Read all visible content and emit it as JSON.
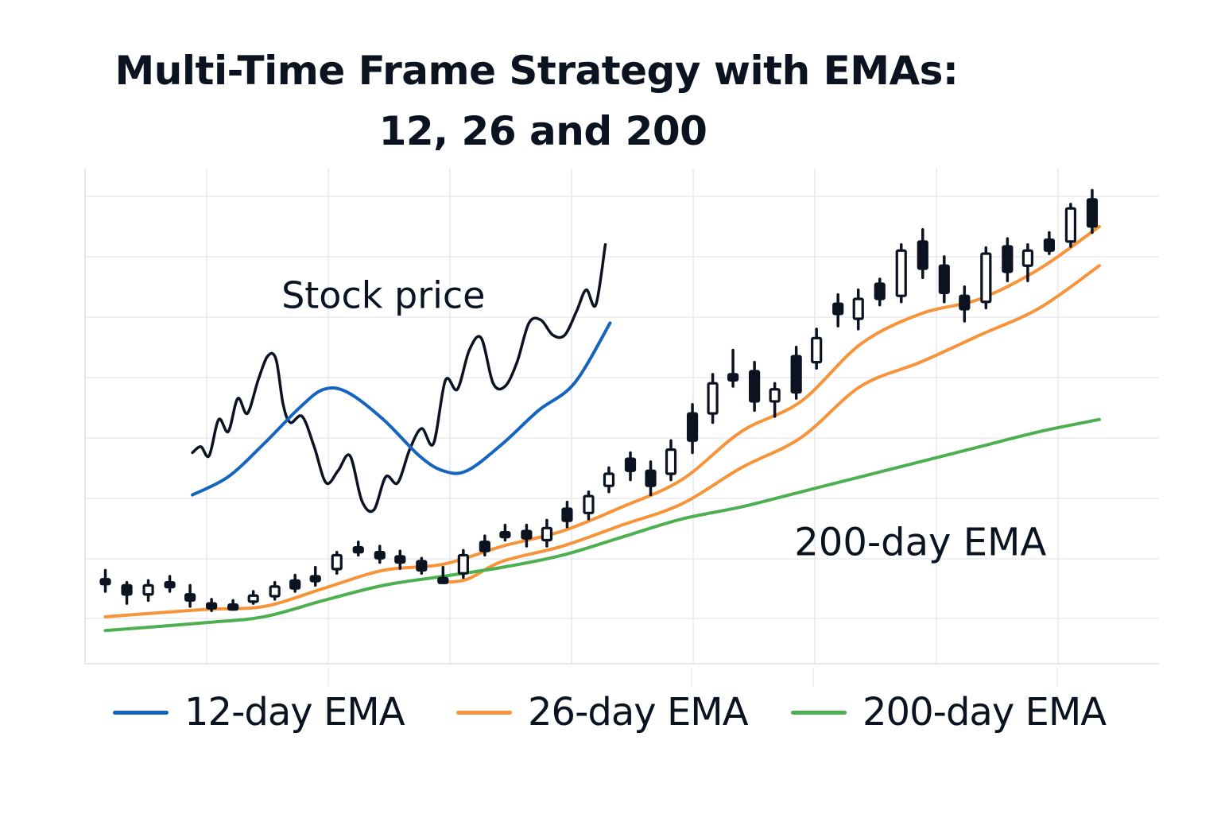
{
  "chart_data": {
    "type": "candlestick",
    "title": "Multi-Time Frame Strategy with EMAs:",
    "subtitle": "12, 26 and 200",
    "xlabel": "",
    "ylabel": "",
    "x_ticks_labeled": false,
    "y_ticks_labeled": false,
    "grid": true,
    "xlim": [
      0,
      9
    ],
    "ylim": [
      0,
      7.75
    ],
    "legend_position": "bottom",
    "legend": [
      {
        "label": "12-day EMA",
        "color": "#1565c0"
      },
      {
        "label": "26-day EMA",
        "color": "#f7943a"
      },
      {
        "label": "200-day EMA",
        "color": "#4caf50"
      }
    ],
    "annotations": [
      {
        "text": "Stock price",
        "x": 2.5,
        "y": 5.9
      },
      {
        "text": "200-day EMA",
        "x": 7.0,
        "y": 1.8
      }
    ],
    "candles": [
      {
        "x": 0.17,
        "open": 1.4,
        "close": 1.35,
        "high": 1.55,
        "low": 1.2,
        "filled": true
      },
      {
        "x": 0.35,
        "open": 1.3,
        "close": 1.15,
        "high": 1.35,
        "low": 1.0,
        "filled": true
      },
      {
        "x": 0.53,
        "open": 1.15,
        "close": 1.3,
        "high": 1.38,
        "low": 1.05,
        "filled": false
      },
      {
        "x": 0.71,
        "open": 1.35,
        "close": 1.27,
        "high": 1.45,
        "low": 1.2,
        "filled": true
      },
      {
        "x": 0.88,
        "open": 1.15,
        "close": 1.05,
        "high": 1.3,
        "low": 0.95,
        "filled": true
      },
      {
        "x": 1.06,
        "open": 1.0,
        "close": 0.95,
        "high": 1.07,
        "low": 0.88,
        "filled": true
      },
      {
        "x": 1.24,
        "open": 0.98,
        "close": 0.95,
        "high": 1.05,
        "low": 0.9,
        "filled": true
      },
      {
        "x": 1.41,
        "open": 1.03,
        "close": 1.13,
        "high": 1.2,
        "low": 1.0,
        "filled": false
      },
      {
        "x": 1.59,
        "open": 1.12,
        "close": 1.28,
        "high": 1.35,
        "low": 1.07,
        "filled": false
      },
      {
        "x": 1.76,
        "open": 1.38,
        "close": 1.25,
        "high": 1.47,
        "low": 1.2,
        "filled": true
      },
      {
        "x": 1.93,
        "open": 1.45,
        "close": 1.38,
        "high": 1.6,
        "low": 1.3,
        "filled": true
      },
      {
        "x": 2.11,
        "open": 1.57,
        "close": 1.8,
        "high": 1.85,
        "low": 1.5,
        "filled": false
      },
      {
        "x": 2.29,
        "open": 1.93,
        "close": 1.85,
        "high": 2.02,
        "low": 1.8,
        "filled": true
      },
      {
        "x": 2.47,
        "open": 1.85,
        "close": 1.75,
        "high": 1.95,
        "low": 1.68,
        "filled": true
      },
      {
        "x": 2.64,
        "open": 1.78,
        "close": 1.68,
        "high": 1.87,
        "low": 1.58,
        "filled": true
      },
      {
        "x": 2.82,
        "open": 1.7,
        "close": 1.55,
        "high": 1.75,
        "low": 1.5,
        "filled": true
      },
      {
        "x": 3.0,
        "open": 1.42,
        "close": 1.37,
        "high": 1.6,
        "low": 1.35,
        "filled": true
      },
      {
        "x": 3.17,
        "open": 1.5,
        "close": 1.8,
        "high": 1.88,
        "low": 1.43,
        "filled": false
      },
      {
        "x": 3.35,
        "open": 2.02,
        "close": 1.87,
        "high": 2.12,
        "low": 1.8,
        "filled": true
      },
      {
        "x": 3.52,
        "open": 2.18,
        "close": 2.12,
        "high": 2.3,
        "low": 2.05,
        "filled": true
      },
      {
        "x": 3.7,
        "open": 2.2,
        "close": 2.08,
        "high": 2.3,
        "low": 1.95,
        "filled": true
      },
      {
        "x": 3.87,
        "open": 2.05,
        "close": 2.25,
        "high": 2.38,
        "low": 1.95,
        "filled": false
      },
      {
        "x": 4.04,
        "open": 2.57,
        "close": 2.37,
        "high": 2.68,
        "low": 2.27,
        "filled": true
      },
      {
        "x": 4.22,
        "open": 2.5,
        "close": 2.78,
        "high": 2.85,
        "low": 2.4,
        "filled": false
      },
      {
        "x": 4.39,
        "open": 2.95,
        "close": 3.15,
        "high": 3.25,
        "low": 2.85,
        "filled": false
      },
      {
        "x": 4.57,
        "open": 3.4,
        "close": 3.2,
        "high": 3.5,
        "low": 3.05,
        "filled": true
      },
      {
        "x": 4.74,
        "open": 3.2,
        "close": 2.95,
        "high": 3.35,
        "low": 2.8,
        "filled": true
      },
      {
        "x": 4.91,
        "open": 3.15,
        "close": 3.55,
        "high": 3.7,
        "low": 3.05,
        "filled": false
      },
      {
        "x": 5.09,
        "open": 4.15,
        "close": 3.7,
        "high": 4.3,
        "low": 3.5,
        "filled": true
      },
      {
        "x": 5.26,
        "open": 4.15,
        "close": 4.65,
        "high": 4.8,
        "low": 4.0,
        "filled": false
      },
      {
        "x": 5.43,
        "open": 4.8,
        "close": 4.7,
        "high": 5.2,
        "low": 4.6,
        "filled": true
      },
      {
        "x": 5.61,
        "open": 4.85,
        "close": 4.35,
        "high": 5.0,
        "low": 4.2,
        "filled": true
      },
      {
        "x": 5.78,
        "open": 4.35,
        "close": 4.55,
        "high": 4.65,
        "low": 4.1,
        "filled": false
      },
      {
        "x": 5.96,
        "open": 5.1,
        "close": 4.5,
        "high": 5.25,
        "low": 4.4,
        "filled": true
      },
      {
        "x": 6.13,
        "open": 5.0,
        "close": 5.4,
        "high": 5.55,
        "low": 4.9,
        "filled": false
      },
      {
        "x": 6.31,
        "open": 5.97,
        "close": 5.8,
        "high": 6.12,
        "low": 5.6,
        "filled": true
      },
      {
        "x": 6.48,
        "open": 5.72,
        "close": 6.05,
        "high": 6.2,
        "low": 5.55,
        "filled": false
      },
      {
        "x": 6.66,
        "open": 6.3,
        "close": 6.05,
        "high": 6.38,
        "low": 5.95,
        "filled": true
      },
      {
        "x": 6.84,
        "open": 6.1,
        "close": 6.85,
        "high": 6.95,
        "low": 6.0,
        "filled": false
      },
      {
        "x": 7.02,
        "open": 7.0,
        "close": 6.55,
        "high": 7.2,
        "low": 6.4,
        "filled": true
      },
      {
        "x": 7.2,
        "open": 6.6,
        "close": 6.15,
        "high": 6.75,
        "low": 6.0,
        "filled": true
      },
      {
        "x": 7.37,
        "open": 6.1,
        "close": 5.88,
        "high": 6.25,
        "low": 5.68,
        "filled": true
      },
      {
        "x": 7.55,
        "open": 6.0,
        "close": 6.8,
        "high": 6.9,
        "low": 5.9,
        "filled": false
      },
      {
        "x": 7.73,
        "open": 6.92,
        "close": 6.5,
        "high": 7.05,
        "low": 6.35,
        "filled": true
      },
      {
        "x": 7.9,
        "open": 6.6,
        "close": 6.85,
        "high": 6.95,
        "low": 6.35,
        "filled": false
      },
      {
        "x": 8.08,
        "open": 7.03,
        "close": 6.85,
        "high": 7.15,
        "low": 6.8,
        "filled": true
      },
      {
        "x": 8.26,
        "open": 7.0,
        "close": 7.55,
        "high": 7.62,
        "low": 6.92,
        "filled": false
      },
      {
        "x": 8.44,
        "open": 7.7,
        "close": 7.25,
        "high": 7.85,
        "low": 7.15,
        "filled": true
      }
    ],
    "series": [
      {
        "name": "Stock price (inset)",
        "color": "#0b1220",
        "x": [
          0.9,
          0.97,
          1.04,
          1.12,
          1.2,
          1.28,
          1.36,
          1.45,
          1.53,
          1.6,
          1.66,
          1.72,
          1.82,
          1.92,
          2.02,
          2.12,
          2.22,
          2.32,
          2.42,
          2.52,
          2.62,
          2.72,
          2.82,
          2.92,
          3.02,
          3.12,
          3.22,
          3.32,
          3.42,
          3.52,
          3.62,
          3.72,
          3.82,
          3.92,
          4.02,
          4.12,
          4.2,
          4.28,
          4.36
        ],
        "y": [
          3.5,
          3.6,
          3.45,
          4.05,
          3.85,
          4.4,
          4.15,
          4.7,
          5.1,
          5.05,
          4.3,
          4.0,
          4.1,
          3.6,
          3.0,
          3.2,
          3.45,
          2.7,
          2.55,
          3.1,
          3.0,
          3.55,
          3.9,
          3.65,
          4.7,
          4.55,
          5.2,
          5.4,
          4.65,
          4.6,
          5.0,
          5.65,
          5.7,
          5.45,
          5.45,
          5.85,
          6.2,
          5.95,
          6.95
        ]
      },
      {
        "name": "12-day EMA",
        "color": "#1565c0",
        "x": [
          0.9,
          1.2,
          1.5,
          1.8,
          2.0,
          2.2,
          2.5,
          2.8,
          3.0,
          3.2,
          3.5,
          3.8,
          4.1,
          4.4
        ],
        "y": [
          2.8,
          3.1,
          3.65,
          4.25,
          4.55,
          4.5,
          4.05,
          3.45,
          3.2,
          3.2,
          3.65,
          4.2,
          4.65,
          5.65
        ]
      },
      {
        "name": "26-day EMA (upper)",
        "color": "#f7943a",
        "x": [
          0.17,
          1.0,
          1.5,
          2.0,
          2.5,
          3.0,
          3.5,
          4.0,
          4.5,
          5.0,
          5.5,
          6.0,
          6.5,
          7.0,
          7.5,
          8.0,
          8.5
        ],
        "y": [
          0.78,
          0.9,
          0.95,
          1.25,
          1.55,
          1.65,
          1.95,
          2.2,
          2.6,
          3.05,
          3.85,
          4.35,
          5.3,
          5.8,
          6.05,
          6.55,
          7.25
        ]
      },
      {
        "name": "26-day EMA (lower)",
        "color": "#f7943a",
        "x": [
          2.98,
          3.2,
          3.5,
          4.0,
          4.5,
          5.0,
          5.5,
          6.0,
          6.5,
          7.0,
          7.5,
          8.0,
          8.5
        ],
        "y": [
          1.35,
          1.4,
          1.7,
          1.95,
          2.3,
          2.65,
          3.25,
          3.75,
          4.6,
          5.0,
          5.45,
          5.9,
          6.6
        ]
      },
      {
        "name": "200-day EMA",
        "color": "#4caf50",
        "x": [
          0.17,
          1.0,
          1.5,
          2.0,
          2.5,
          3.0,
          3.5,
          4.0,
          4.5,
          5.0,
          5.5,
          6.0,
          6.5,
          7.0,
          7.5,
          8.0,
          8.5
        ],
        "y": [
          0.55,
          0.68,
          0.78,
          1.05,
          1.3,
          1.45,
          1.6,
          1.8,
          2.1,
          2.4,
          2.6,
          2.85,
          3.1,
          3.35,
          3.6,
          3.85,
          4.05
        ]
      }
    ]
  }
}
